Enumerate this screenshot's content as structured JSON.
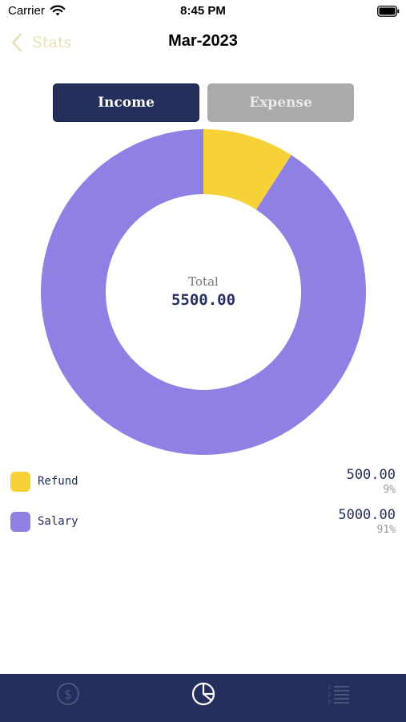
{
  "status": {
    "carrier": "Carrier",
    "time": "8:45 PM"
  },
  "nav": {
    "back_label": "Stats",
    "title": "Mar-2023"
  },
  "segments": {
    "income": "Income",
    "expense": "Expense",
    "selected": "Income"
  },
  "center": {
    "label": "Total",
    "value": "5500.00"
  },
  "legend": [
    {
      "name": "Refund",
      "value": "500.00",
      "percent": "9%"
    },
    {
      "name": "Salary",
      "value": "5000.00",
      "percent": "91%"
    }
  ],
  "chart_data": {
    "type": "pie",
    "variant": "donut",
    "categories": [
      "Refund",
      "Salary"
    ],
    "values": [
      500,
      5000
    ],
    "colors": [
      "#f7d138",
      "#8e81e3"
    ],
    "total": 5500
  },
  "colors": {
    "navy": "#252f5c",
    "refund": "#f7d138",
    "salary": "#8e81e3",
    "back_tint": "#e8dfae",
    "expense_inactive": "#aaaaaa"
  },
  "tabs": [
    {
      "icon": "dollar-circle-icon",
      "active": false
    },
    {
      "icon": "pie-chart-icon",
      "active": true
    },
    {
      "icon": "numbered-list-icon",
      "active": false
    }
  ]
}
